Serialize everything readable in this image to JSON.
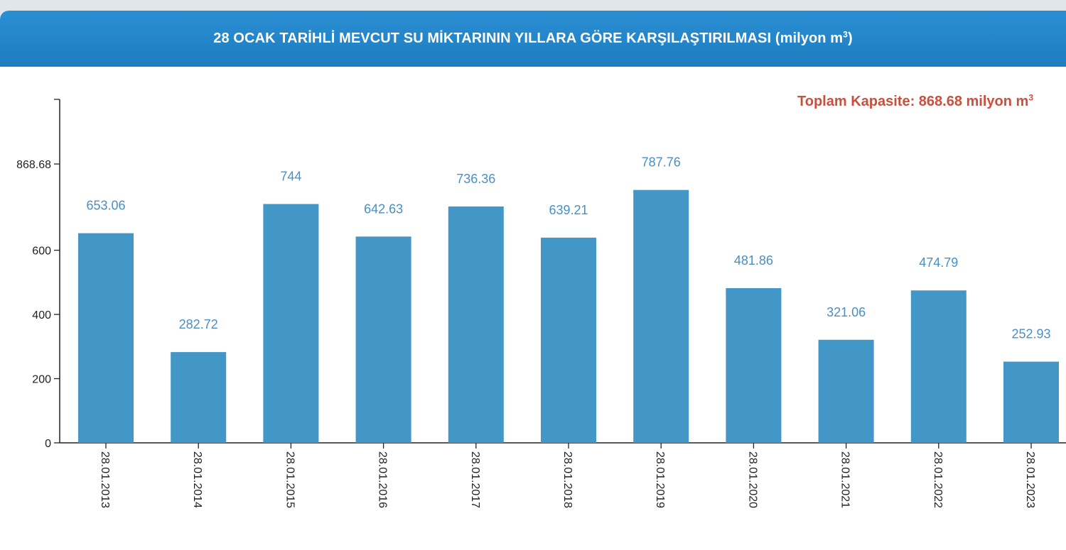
{
  "header": {
    "title": "28 OCAK TARİHLİ MEVCUT SU MİKTARININ YILLARA GÖRE KARŞILAŞTIRILMASI",
    "unit_prefix": "(milyon m",
    "unit_sup": "3",
    "unit_suffix": ")"
  },
  "capacity": {
    "label": "Toplam Kapasite: 868.68 milyon m",
    "sup": "3"
  },
  "chart_data": {
    "type": "bar",
    "categories": [
      "28.01.2013",
      "28.01.2014",
      "28.01.2015",
      "28.01.2016",
      "28.01.2017",
      "28.01.2018",
      "28.01.2019",
      "28.01.2020",
      "28.01.2021",
      "28.01.2022",
      "28.01.2023"
    ],
    "values": [
      653.06,
      282.72,
      744,
      642.63,
      736.36,
      639.21,
      787.76,
      481.86,
      321.06,
      474.79,
      252.93
    ],
    "value_labels": [
      "653.06",
      "282.72",
      "744",
      "642.63",
      "736.36",
      "639.21",
      "787.76",
      "481.86",
      "321.06",
      "474.79",
      "252.93"
    ],
    "yticks": [
      0,
      200,
      400,
      600,
      868.68
    ],
    "ytick_labels": [
      "0",
      "200",
      "400",
      "600",
      "868.68"
    ],
    "ylim": [
      0,
      1070
    ],
    "bar_color": "#4397c6",
    "label_color": "#4b8fc2",
    "grid": false
  },
  "colors": {
    "header_bg": "#2384c9",
    "capacity_text": "#c9503d"
  }
}
